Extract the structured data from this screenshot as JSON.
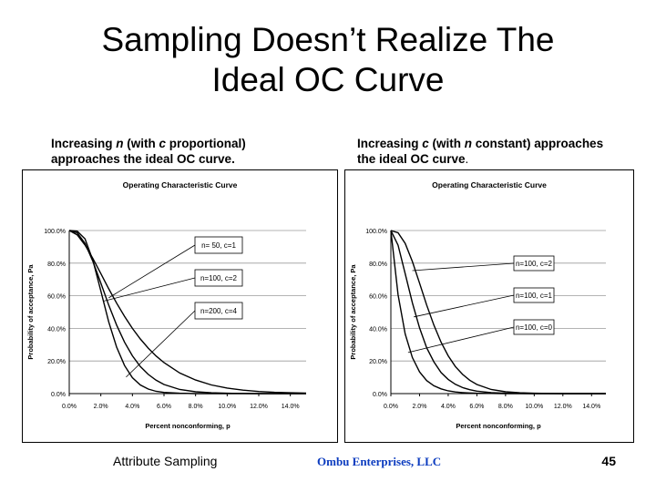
{
  "slide": {
    "title_line1": "Sampling Doesn’t Realize The",
    "title_line2": "Ideal OC Curve",
    "caption_left_a": "Increasing ",
    "caption_left_n": "n",
    "caption_left_b": " (with ",
    "caption_left_c": "c",
    "caption_left_d": " proportional)",
    "caption_left_line2": "approaches the ideal OC curve.",
    "caption_right_a": "Increasing ",
    "caption_right_c": "c",
    "caption_right_b": " (with ",
    "caption_right_n": "n",
    "caption_right_d": " constant) approaches",
    "caption_right_line2": "the ideal OC curve",
    "caption_right_dot": ".",
    "footer_left": "Attribute Sampling",
    "footer_center": "Ombu Enterprises, LLC",
    "page_number": "45"
  },
  "colors": {
    "footer_center": "#0b3bbf",
    "chart_border": "#000000",
    "grid": "#9a9a9a",
    "curve": "#000000"
  },
  "chart_data": [
    {
      "type": "line",
      "title": "Operating Characteristic Curve",
      "xlabel": "Percent nonconforming, p",
      "ylabel": "Probability of acceptance, Pa",
      "xlim": [
        0,
        0.15
      ],
      "ylim": [
        0,
        1
      ],
      "x_ticks": [
        "0.0%",
        "2.0%",
        "4.0%",
        "6.0%",
        "8.0%",
        "10.0%",
        "12.0%",
        "14.0%"
      ],
      "y_ticks": [
        "0.0%",
        "20.0%",
        "40.0%",
        "60.0%",
        "80.0%",
        "100.0%"
      ],
      "grid": "horizontal",
      "x": [
        0.0,
        0.005,
        0.01,
        0.015,
        0.02,
        0.025,
        0.03,
        0.035,
        0.04,
        0.045,
        0.05,
        0.055,
        0.06,
        0.07,
        0.08,
        0.09,
        0.1,
        0.11,
        0.12,
        0.13,
        0.14,
        0.15
      ],
      "series": [
        {
          "name": "n= 50, c=1",
          "values": [
            1.0,
            0.974,
            0.911,
            0.828,
            0.736,
            0.643,
            0.555,
            0.474,
            0.4,
            0.335,
            0.279,
            0.231,
            0.19,
            0.126,
            0.083,
            0.053,
            0.034,
            0.021,
            0.013,
            0.008,
            0.005,
            0.003
          ]
        },
        {
          "name": "n=100, c=2",
          "values": [
            1.0,
            0.986,
            0.921,
            0.81,
            0.677,
            0.543,
            0.42,
            0.315,
            0.232,
            0.166,
            0.118,
            0.082,
            0.056,
            0.025,
            0.011,
            0.005,
            0.002,
            0.001,
            0.0,
            0.0,
            0.0,
            0.0
          ]
        },
        {
          "name": "n=200, c=4",
          "values": [
            1.0,
            0.996,
            0.949,
            0.817,
            0.629,
            0.44,
            0.285,
            0.172,
            0.098,
            0.053,
            0.028,
            0.014,
            0.007,
            0.002,
            0.0,
            0.0,
            0.0,
            0.0,
            0.0,
            0.0,
            0.0,
            0.0
          ]
        }
      ],
      "callouts": [
        {
          "series": "n= 50, c=1",
          "label": "n= 50, c=1"
        },
        {
          "series": "n=100, c=2",
          "label": "n=100, c=2"
        },
        {
          "series": "n=200, c=4",
          "label": "n=200, c=4"
        }
      ]
    },
    {
      "type": "line",
      "title": "Operating Characteristic Curve",
      "xlabel": "Percent nonconforming, p",
      "ylabel": "Probability of acceptance, Pa",
      "xlim": [
        0,
        0.15
      ],
      "ylim": [
        0,
        1
      ],
      "x_ticks": [
        "0.0%",
        "2.0%",
        "4.0%",
        "6.0%",
        "8.0%",
        "10.0%",
        "12.0%",
        "14.0%"
      ],
      "y_ticks": [
        "0.0%",
        "20.0%",
        "40.0%",
        "60.0%",
        "80.0%",
        "100.0%"
      ],
      "grid": "horizontal",
      "x": [
        0.0,
        0.005,
        0.01,
        0.015,
        0.02,
        0.025,
        0.03,
        0.035,
        0.04,
        0.045,
        0.05,
        0.055,
        0.06,
        0.07,
        0.08,
        0.09,
        0.1,
        0.11,
        0.12,
        0.13,
        0.14,
        0.15
      ],
      "series": [
        {
          "name": "n=100, c=2",
          "values": [
            1.0,
            0.986,
            0.921,
            0.81,
            0.677,
            0.543,
            0.42,
            0.315,
            0.232,
            0.166,
            0.118,
            0.082,
            0.056,
            0.025,
            0.011,
            0.005,
            0.002,
            0.001,
            0.0,
            0.0,
            0.0,
            0.0
          ]
        },
        {
          "name": "n=100, c=1",
          "values": [
            1.0,
            0.91,
            0.736,
            0.557,
            0.403,
            0.281,
            0.195,
            0.129,
            0.087,
            0.057,
            0.037,
            0.024,
            0.015,
            0.006,
            0.002,
            0.001,
            0.0,
            0.0,
            0.0,
            0.0,
            0.0,
            0.0
          ]
        },
        {
          "name": "n=100, c=0",
          "values": [
            1.0,
            0.606,
            0.366,
            0.221,
            0.133,
            0.08,
            0.048,
            0.029,
            0.017,
            0.01,
            0.006,
            0.004,
            0.002,
            0.001,
            0.0,
            0.0,
            0.0,
            0.0,
            0.0,
            0.0,
            0.0,
            0.0
          ]
        }
      ],
      "callouts": [
        {
          "series": "n=100, c=2",
          "label": "n=100, c=2"
        },
        {
          "series": "n=100, c=1",
          "label": "n=100, c=1"
        },
        {
          "series": "n=100, c=0",
          "label": "n=100, c=0"
        }
      ]
    }
  ]
}
